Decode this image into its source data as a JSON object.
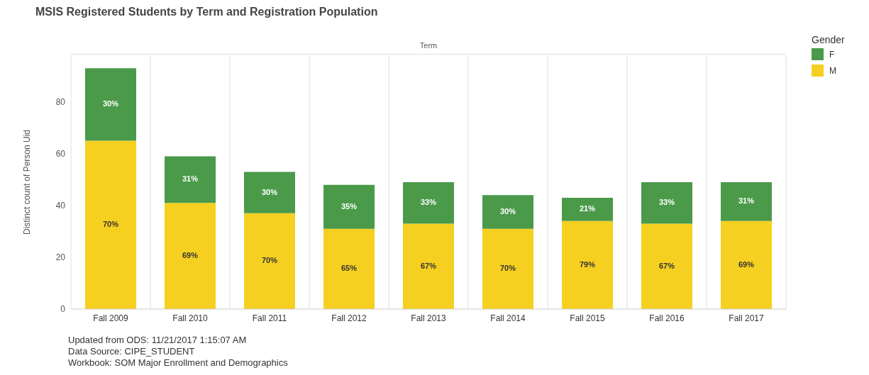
{
  "chart_data": {
    "type": "bar",
    "title": "MSIS Registered Students by Term and Registration Population",
    "xlabel": "Term",
    "ylabel": "Distinct count of Person Uid",
    "legend_title": "Gender",
    "categories": [
      "Fall 2009",
      "Fall 2010",
      "Fall 2011",
      "Fall 2012",
      "Fall 2013",
      "Fall 2014",
      "Fall 2015",
      "Fall 2016",
      "Fall 2017"
    ],
    "stacked": true,
    "series": [
      {
        "name": "M",
        "color": "#f5d020",
        "values": [
          65,
          41,
          37,
          31,
          33,
          31,
          34,
          33,
          34
        ]
      },
      {
        "name": "F",
        "color": "#4a9a4a",
        "values": [
          28,
          18,
          16,
          17,
          16,
          13,
          9,
          16,
          15
        ]
      }
    ],
    "ylim": [
      0,
      98
    ],
    "yticks": [
      0,
      20,
      40,
      60,
      80
    ],
    "grid": "x",
    "legend": "top right",
    "annotations": [
      "70%",
      "69%",
      "70%",
      "65%",
      "67%",
      "70%",
      "79%",
      "67%",
      "69%",
      "30%",
      "31%",
      "30%",
      "35%",
      "33%",
      "30%",
      "21%",
      "33%",
      "31%",
      "Updated from ODS: 11/21/2017 1:15:07 AM",
      "Data Source: CIPE_STUDENT",
      "Workbook: SOM Major Enrollment and Demographics"
    ]
  }
}
